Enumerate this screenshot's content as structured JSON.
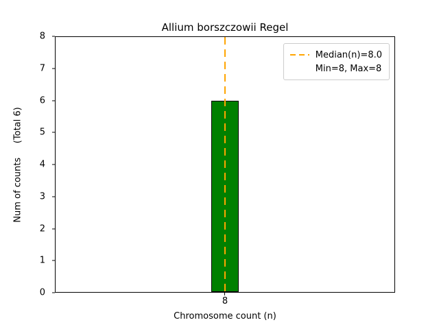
{
  "chart_data": {
    "type": "bar",
    "title": "Allium borszczowii Regel",
    "xlabel": "Chromosome count (n)",
    "ylabel": "Num of counts     (Total 6)",
    "categories": [
      "8"
    ],
    "values": [
      6
    ],
    "total": 6,
    "ylim": [
      0,
      8
    ],
    "y_ticks": [
      0,
      1,
      2,
      3,
      4,
      5,
      6,
      7,
      8
    ],
    "x_tick_labels": [
      "8"
    ],
    "bar_color": "#008000",
    "bar_edge_color": "#000000",
    "grid": false,
    "median": {
      "value": 8.0,
      "line_color": "#ffa500",
      "line_style": "dashed"
    },
    "legend": {
      "position": "upper right",
      "entries": [
        {
          "label": "Median(n)=8.0",
          "sample": "dashed-line",
          "color": "#ffa500"
        },
        {
          "label": "Min=8, Max=8",
          "sample": "none"
        }
      ]
    }
  }
}
